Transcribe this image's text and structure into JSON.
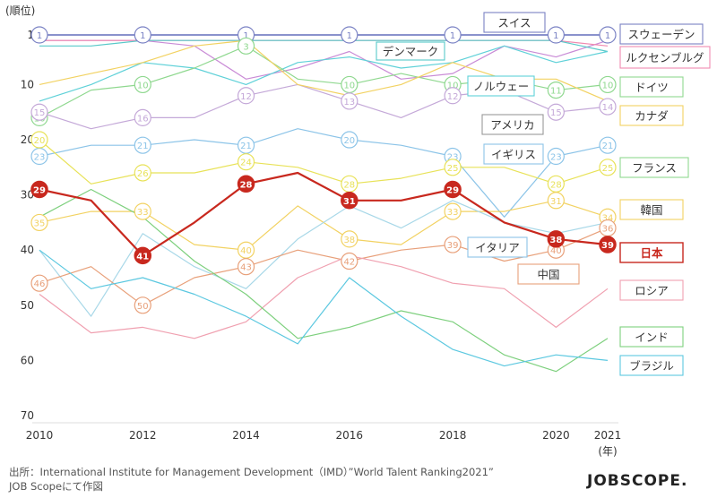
{
  "chart_data": {
    "type": "line",
    "title": "",
    "ylabel": "(順位)",
    "xlabel": "(年)",
    "ylim": [
      1,
      70
    ],
    "y_ticks": [
      1,
      10,
      20,
      30,
      40,
      50,
      60,
      70
    ],
    "x_ticks": [
      2010,
      2012,
      2014,
      2016,
      2018,
      2020,
      2021
    ],
    "x_range": [
      2010,
      2021
    ],
    "series": [
      {
        "name": "スイス",
        "color": "#7a82c4",
        "width": 1.8,
        "values": [
          [
            2010,
            1
          ],
          [
            2011,
            1
          ],
          [
            2012,
            1
          ],
          [
            2013,
            1
          ],
          [
            2014,
            1
          ],
          [
            2015,
            1
          ],
          [
            2016,
            1
          ],
          [
            2017,
            1
          ],
          [
            2018,
            1
          ],
          [
            2019,
            1
          ],
          [
            2020,
            1
          ],
          [
            2021,
            1
          ]
        ],
        "labels": [
          [
            2010,
            1
          ],
          [
            2012,
            1
          ],
          [
            2014,
            1
          ],
          [
            2016,
            1
          ],
          [
            2018,
            1
          ],
          [
            2020,
            1
          ],
          [
            2021,
            1
          ]
        ]
      },
      {
        "name": "スウェーデン",
        "color": "#c98bd6",
        "width": 1.2,
        "values": [
          [
            2010,
            2
          ],
          [
            2011,
            2
          ],
          [
            2012,
            2
          ],
          [
            2013,
            3
          ],
          [
            2014,
            9
          ],
          [
            2015,
            7
          ],
          [
            2016,
            4
          ],
          [
            2017,
            9
          ],
          [
            2018,
            8
          ],
          [
            2019,
            3
          ],
          [
            2020,
            5
          ],
          [
            2021,
            2
          ]
        ],
        "labels": []
      },
      {
        "name": "ルクセンブルグ",
        "color": "#f08ab0",
        "width": 1.2,
        "values": [
          [
            2010,
            2
          ],
          [
            2011,
            2
          ],
          [
            2012,
            2
          ],
          [
            2013,
            2
          ],
          [
            2014,
            2
          ],
          [
            2015,
            2
          ],
          [
            2016,
            2
          ],
          [
            2017,
            2
          ],
          [
            2018,
            2
          ],
          [
            2019,
            2
          ],
          [
            2020,
            2
          ],
          [
            2021,
            3
          ]
        ],
        "labels": []
      },
      {
        "name": "デンマーク",
        "color": "#58c9c9",
        "width": 1.2,
        "values": [
          [
            2010,
            3
          ],
          [
            2011,
            3
          ],
          [
            2012,
            2
          ],
          [
            2013,
            2
          ],
          [
            2014,
            2
          ],
          [
            2015,
            2
          ],
          [
            2016,
            2
          ],
          [
            2017,
            2
          ],
          [
            2018,
            2
          ],
          [
            2019,
            2
          ],
          [
            2020,
            2
          ],
          [
            2021,
            4
          ]
        ],
        "labels": []
      },
      {
        "name": "ノルウェー",
        "color": "#5fd1d8",
        "width": 1.2,
        "values": [
          [
            2010,
            13
          ],
          [
            2011,
            10
          ],
          [
            2012,
            6
          ],
          [
            2013,
            7
          ],
          [
            2014,
            10
          ],
          [
            2015,
            6
          ],
          [
            2016,
            5
          ],
          [
            2017,
            7
          ],
          [
            2018,
            6
          ],
          [
            2019,
            3
          ],
          [
            2020,
            6
          ],
          [
            2021,
            4
          ]
        ],
        "labels": []
      },
      {
        "name": "ドイツ",
        "color": "#8fd88f",
        "width": 1.2,
        "values": [
          [
            2010,
            16
          ],
          [
            2011,
            11
          ],
          [
            2012,
            10
          ],
          [
            2013,
            7
          ],
          [
            2014,
            3
          ],
          [
            2015,
            9
          ],
          [
            2016,
            10
          ],
          [
            2017,
            8
          ],
          [
            2018,
            10
          ],
          [
            2019,
            9
          ],
          [
            2020,
            11
          ],
          [
            2021,
            10
          ]
        ],
        "labels": [
          [
            2010,
            16
          ],
          [
            2012,
            10
          ],
          [
            2014,
            3
          ],
          [
            2016,
            10
          ],
          [
            2018,
            10
          ],
          [
            2020,
            11
          ],
          [
            2021,
            10
          ]
        ]
      },
      {
        "name": "カナダ",
        "color": "#c4a8d8",
        "width": 1.2,
        "values": [
          [
            2010,
            15
          ],
          [
            2011,
            18
          ],
          [
            2012,
            16
          ],
          [
            2013,
            16
          ],
          [
            2014,
            12
          ],
          [
            2015,
            10
          ],
          [
            2016,
            13
          ],
          [
            2017,
            16
          ],
          [
            2018,
            12
          ],
          [
            2019,
            11
          ],
          [
            2020,
            15
          ],
          [
            2021,
            14
          ]
        ],
        "labels": [
          [
            2010,
            15
          ],
          [
            2012,
            16
          ],
          [
            2014,
            12
          ],
          [
            2016,
            13
          ],
          [
            2018,
            12
          ],
          [
            2020,
            15
          ],
          [
            2021,
            14
          ]
        ]
      },
      {
        "name": "アメリカ",
        "color": "#f2d262",
        "width": 1.2,
        "values": [
          [
            2010,
            10
          ],
          [
            2011,
            8
          ],
          [
            2012,
            6
          ],
          [
            2013,
            3
          ],
          [
            2014,
            2
          ],
          [
            2015,
            10
          ],
          [
            2016,
            12
          ],
          [
            2017,
            10
          ],
          [
            2018,
            6
          ],
          [
            2019,
            9
          ],
          [
            2020,
            9
          ],
          [
            2021,
            13
          ]
        ],
        "labels": []
      },
      {
        "name": "イギリス",
        "color": "#8cc4e8",
        "width": 1.2,
        "values": [
          [
            2010,
            23
          ],
          [
            2011,
            21
          ],
          [
            2012,
            21
          ],
          [
            2013,
            20
          ],
          [
            2014,
            21
          ],
          [
            2015,
            18
          ],
          [
            2016,
            20
          ],
          [
            2017,
            21
          ],
          [
            2018,
            23
          ],
          [
            2019,
            34
          ],
          [
            2020,
            23
          ],
          [
            2021,
            21
          ]
        ],
        "labels": [
          [
            2010,
            23
          ],
          [
            2012,
            21
          ],
          [
            2014,
            21
          ],
          [
            2016,
            20
          ],
          [
            2018,
            23
          ],
          [
            2020,
            23
          ],
          [
            2021,
            21
          ]
        ]
      },
      {
        "name": "フランス",
        "color": "#e8e258",
        "width": 1.2,
        "values": [
          [
            2010,
            20
          ],
          [
            2011,
            28
          ],
          [
            2012,
            26
          ],
          [
            2013,
            26
          ],
          [
            2014,
            24
          ],
          [
            2015,
            25
          ],
          [
            2016,
            28
          ],
          [
            2017,
            27
          ],
          [
            2018,
            25
          ],
          [
            2019,
            25
          ],
          [
            2020,
            28
          ],
          [
            2021,
            25
          ]
        ],
        "labels": [
          [
            2010,
            20
          ],
          [
            2012,
            26
          ],
          [
            2014,
            24
          ],
          [
            2016,
            28
          ],
          [
            2018,
            25
          ],
          [
            2020,
            28
          ],
          [
            2021,
            25
          ]
        ]
      },
      {
        "name": "韓国",
        "color": "#f2d262",
        "width": 1.2,
        "values": [
          [
            2010,
            35
          ],
          [
            2011,
            33
          ],
          [
            2012,
            33
          ],
          [
            2013,
            39
          ],
          [
            2014,
            40
          ],
          [
            2015,
            32
          ],
          [
            2016,
            38
          ],
          [
            2017,
            39
          ],
          [
            2018,
            33
          ],
          [
            2019,
            33
          ],
          [
            2020,
            31
          ],
          [
            2021,
            34
          ]
        ],
        "labels": [
          [
            2010,
            35
          ],
          [
            2012,
            33
          ],
          [
            2014,
            40
          ],
          [
            2016,
            38
          ],
          [
            2018,
            33
          ],
          [
            2020,
            31
          ],
          [
            2021,
            34
          ]
        ]
      },
      {
        "name": "日本",
        "color": "#c8281e",
        "width": 2.2,
        "values": [
          [
            2010,
            29
          ],
          [
            2011,
            31
          ],
          [
            2012,
            41
          ],
          [
            2013,
            35
          ],
          [
            2014,
            28
          ],
          [
            2015,
            26
          ],
          [
            2016,
            31
          ],
          [
            2017,
            31
          ],
          [
            2018,
            29
          ],
          [
            2019,
            35
          ],
          [
            2020,
            38
          ],
          [
            2021,
            39
          ]
        ],
        "labels": [
          [
            2010,
            29
          ],
          [
            2012,
            41
          ],
          [
            2014,
            28
          ],
          [
            2016,
            31
          ],
          [
            2018,
            29
          ],
          [
            2020,
            38
          ],
          [
            2021,
            39
          ]
        ]
      },
      {
        "name": "イタリア",
        "color": "#a8d8e8",
        "width": 1.2,
        "values": [
          [
            2010,
            40
          ],
          [
            2011,
            52
          ],
          [
            2012,
            37
          ],
          [
            2013,
            43
          ],
          [
            2014,
            47
          ],
          [
            2015,
            38
          ],
          [
            2016,
            32
          ],
          [
            2017,
            36
          ],
          [
            2018,
            31
          ],
          [
            2019,
            35
          ],
          [
            2020,
            37
          ],
          [
            2021,
            35
          ]
        ],
        "labels": []
      },
      {
        "name": "中国",
        "color": "#e8a07a",
        "width": 1.2,
        "values": [
          [
            2010,
            46
          ],
          [
            2011,
            43
          ],
          [
            2012,
            50
          ],
          [
            2013,
            45
          ],
          [
            2014,
            43
          ],
          [
            2015,
            40
          ],
          [
            2016,
            42
          ],
          [
            2017,
            40
          ],
          [
            2018,
            39
          ],
          [
            2019,
            42
          ],
          [
            2020,
            40
          ],
          [
            2021,
            36
          ]
        ],
        "labels": [
          [
            2010,
            46
          ],
          [
            2012,
            50
          ],
          [
            2014,
            43
          ],
          [
            2016,
            42
          ],
          [
            2018,
            39
          ],
          [
            2020,
            40
          ],
          [
            2021,
            36
          ]
        ]
      },
      {
        "name": "ロシア",
        "color": "#f0a0b0",
        "width": 1.2,
        "values": [
          [
            2010,
            48
          ],
          [
            2011,
            55
          ],
          [
            2012,
            54
          ],
          [
            2013,
            56
          ],
          [
            2014,
            53
          ],
          [
            2015,
            45
          ],
          [
            2016,
            41
          ],
          [
            2017,
            43
          ],
          [
            2018,
            46
          ],
          [
            2019,
            47
          ],
          [
            2020,
            54
          ],
          [
            2021,
            47
          ]
        ],
        "labels": []
      },
      {
        "name": "インド",
        "color": "#7ed07e",
        "width": 1.2,
        "values": [
          [
            2010,
            34
          ],
          [
            2011,
            29
          ],
          [
            2012,
            34
          ],
          [
            2013,
            42
          ],
          [
            2014,
            48
          ],
          [
            2015,
            56
          ],
          [
            2016,
            54
          ],
          [
            2017,
            51
          ],
          [
            2018,
            53
          ],
          [
            2019,
            59
          ],
          [
            2020,
            62
          ],
          [
            2021,
            56
          ]
        ],
        "labels": []
      },
      {
        "name": "ブラジル",
        "color": "#5cc8e0",
        "width": 1.2,
        "values": [
          [
            2010,
            40
          ],
          [
            2011,
            47
          ],
          [
            2012,
            45
          ],
          [
            2013,
            48
          ],
          [
            2014,
            52
          ],
          [
            2015,
            57
          ],
          [
            2016,
            45
          ],
          [
            2017,
            52
          ],
          [
            2018,
            58
          ],
          [
            2019,
            61
          ],
          [
            2020,
            59
          ],
          [
            2021,
            60
          ]
        ],
        "labels": []
      }
    ],
    "legend_boxes": [
      {
        "text": "スウェーデン",
        "color": "#7a82c4",
        "placement": "right"
      },
      {
        "text": "ルクセンブルグ",
        "color": "#f08ab0",
        "placement": "right"
      },
      {
        "text": "ドイツ",
        "color": "#8fd88f",
        "placement": "right"
      },
      {
        "text": "カナダ",
        "color": "#f2d262",
        "placement": "right"
      },
      {
        "text": "フランス",
        "color": "#8fd88f",
        "placement": "right"
      },
      {
        "text": "韓国",
        "color": "#f2d262",
        "placement": "right"
      },
      {
        "text": "日本",
        "color": "#c8281e",
        "placement": "right"
      },
      {
        "text": "ロシア",
        "color": "#f0a0b0",
        "placement": "right"
      },
      {
        "text": "インド",
        "color": "#7ed07e",
        "placement": "right"
      },
      {
        "text": "ブラジル",
        "color": "#5cc8e0",
        "placement": "right"
      },
      {
        "text": "スイス",
        "color": "#7a82c4",
        "placement": "in-plot"
      },
      {
        "text": "デンマーク",
        "color": "#58c9c9",
        "placement": "in-plot"
      },
      {
        "text": "ノルウェー",
        "color": "#5fd1d8",
        "placement": "in-plot"
      },
      {
        "text": "アメリカ",
        "color": "#999999",
        "placement": "in-plot"
      },
      {
        "text": "イギリス",
        "color": "#8cc4e8",
        "placement": "in-plot"
      },
      {
        "text": "イタリア",
        "color": "#8cc4e8",
        "placement": "in-plot"
      },
      {
        "text": "中国",
        "color": "#e8a07a",
        "placement": "in-plot"
      }
    ]
  },
  "source": {
    "line1": "出所：International Institute for Management Development（IMD）”World Talent Ranking2021”",
    "line2": "JOB Scopeにて作図"
  },
  "logo": "JOBSCOPE."
}
